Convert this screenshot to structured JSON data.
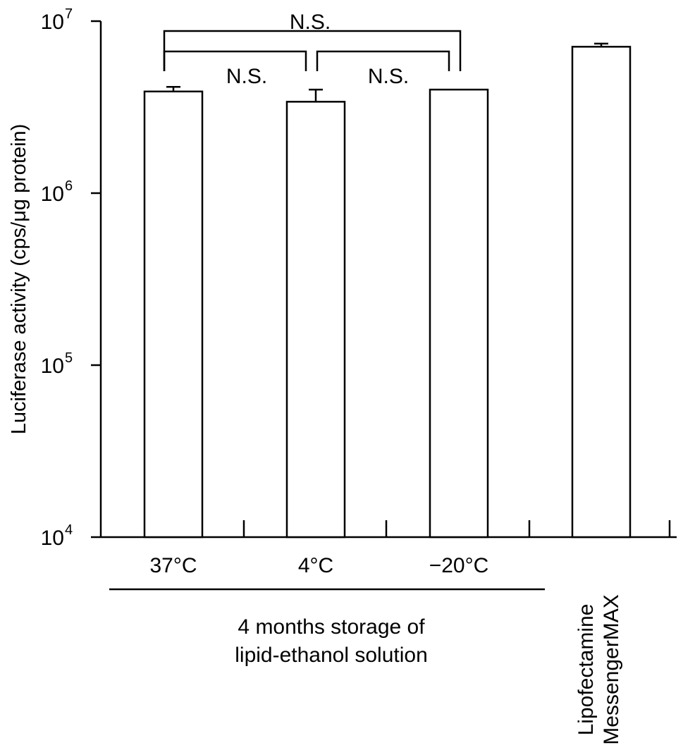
{
  "chart_data": {
    "type": "bar",
    "ylabel": "Luciferase activity (cps/μg protein)",
    "yscale": "log",
    "ylim": [
      10000,
      10000000
    ],
    "yticks": [
      {
        "base": "10",
        "exp": "4"
      },
      {
        "base": "10",
        "exp": "5"
      },
      {
        "base": "10",
        "exp": "6"
      },
      {
        "base": "10",
        "exp": "7"
      }
    ],
    "categories": [
      "37°C",
      "4°C",
      "−20°C",
      "Lipofectamine MessengerMAX"
    ],
    "category_lines": [
      [
        "37°C"
      ],
      [
        "4°C"
      ],
      [
        "−20°C"
      ],
      [
        "Lipofectamine",
        "MessengerMAX"
      ]
    ],
    "values": [
      3900000,
      3400000,
      4000000,
      7100000
    ],
    "error_upper": [
      4150000,
      4000000,
      4000000,
      7400000
    ],
    "group_label": [
      "4 months storage of",
      "lipid-ethanol solution"
    ],
    "significance": [
      {
        "from": 0,
        "to": 1,
        "label": "N.S."
      },
      {
        "from": 1,
        "to": 2,
        "label": "N.S."
      },
      {
        "from": 0,
        "to": 2,
        "label": "N.S."
      }
    ]
  }
}
